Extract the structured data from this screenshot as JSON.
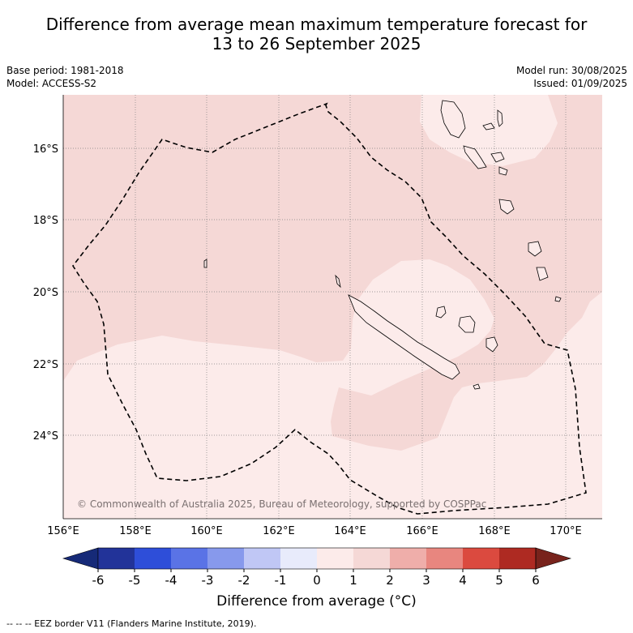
{
  "header": {
    "title_line1": "Difference from average mean maximum temperature forecast for",
    "title_line2": "13 to 26 September 2025",
    "base_period": "Base period: 1981-2018",
    "model": "Model: ACCESS-S2",
    "model_run": "Model run: 30/08/2025",
    "issued": "Issued: 01/09/2025"
  },
  "map": {
    "lon_labels": [
      "156°E",
      "158°E",
      "160°E",
      "162°E",
      "164°E",
      "166°E",
      "168°E",
      "170°E"
    ],
    "lat_labels": [
      "16°S",
      "18°S",
      "20°S",
      "22°S",
      "24°S"
    ],
    "copyright": "© Commonwealth of Australia 2025, Bureau of Meteorology, supported by COSPPac",
    "colors": {
      "anomaly_0_to_1": "#fcebea",
      "anomaly_1_to_2": "#f5d8d6",
      "eez_border": "#000000",
      "grid": "#808080"
    }
  },
  "colorbar": {
    "ticks": [
      "-6",
      "-5",
      "-4",
      "-3",
      "-2",
      "-1",
      "0",
      "1",
      "2",
      "3",
      "4",
      "5",
      "6"
    ],
    "colors": [
      "#223399",
      "#2e4ed9",
      "#5a73e6",
      "#8799ec",
      "#c0c7f5",
      "#e8ebfb",
      "#fcebea",
      "#f5d8d6",
      "#efaeaa",
      "#e8867f",
      "#db4a3f",
      "#ae2a22"
    ],
    "under_color": "#162a78",
    "over_color": "#78231c",
    "label": "Difference from average (°C)"
  },
  "footnote": "--  --  -- EEZ border V11 (Flanders Marine Institute, 2019)."
}
